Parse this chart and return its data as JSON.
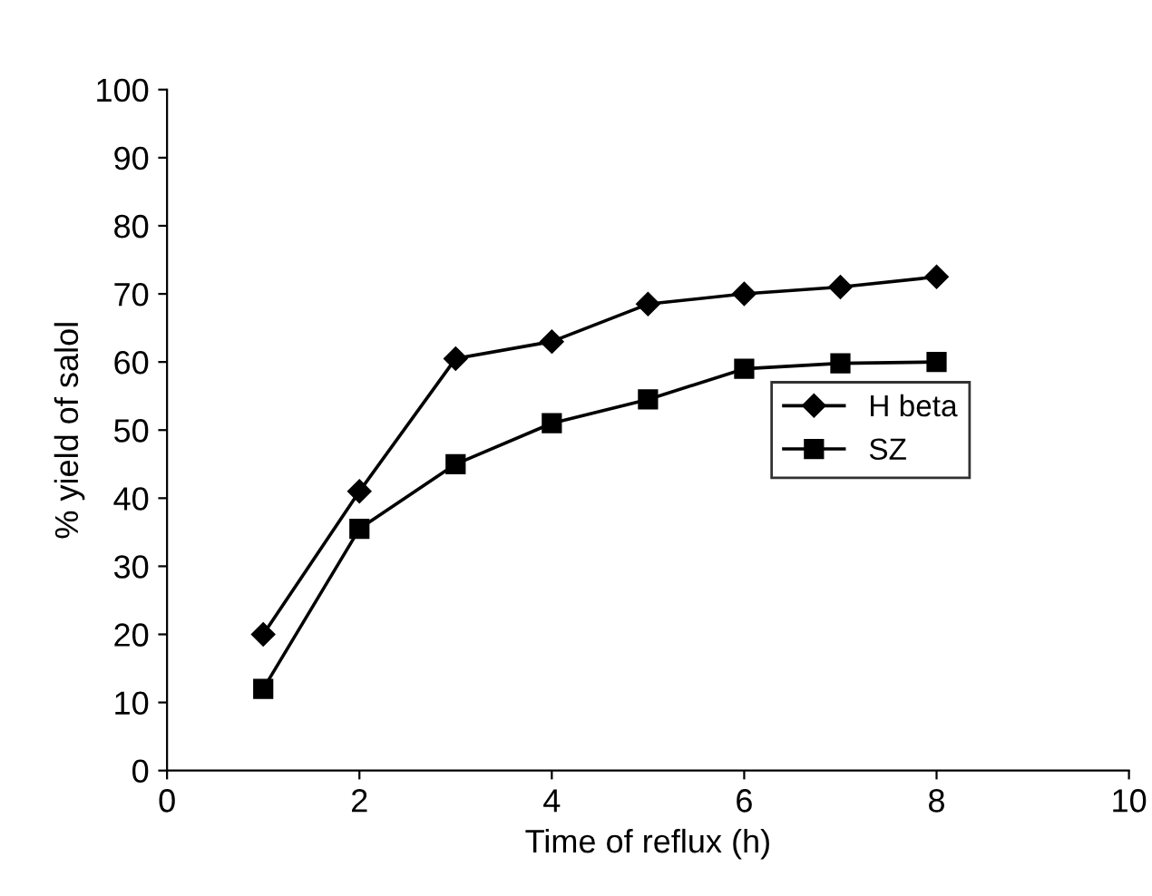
{
  "chart_data": {
    "type": "line",
    "xlabel": "Time of reflux (h)",
    "ylabel": "% yield of salol",
    "x": [
      1,
      2,
      3,
      4,
      5,
      6,
      7,
      8
    ],
    "series": [
      {
        "name": "H beta",
        "color": "#000000",
        "marker": "diamond",
        "values": [
          20,
          41,
          60.5,
          63,
          68.5,
          70,
          71,
          72.5
        ]
      },
      {
        "name": "SZ",
        "color": "#000000",
        "marker": "square",
        "values": [
          12,
          35.5,
          45,
          51,
          54.5,
          59,
          59.8,
          60
        ]
      }
    ],
    "xlim": [
      0,
      10
    ],
    "xticks": [
      0,
      2,
      4,
      6,
      8,
      10
    ],
    "ylim": [
      0,
      100
    ],
    "yticks": [
      0,
      10,
      20,
      30,
      40,
      50,
      60,
      70,
      80,
      90,
      100
    ],
    "grid": false,
    "legend": "center right",
    "line_style": "solid"
  }
}
